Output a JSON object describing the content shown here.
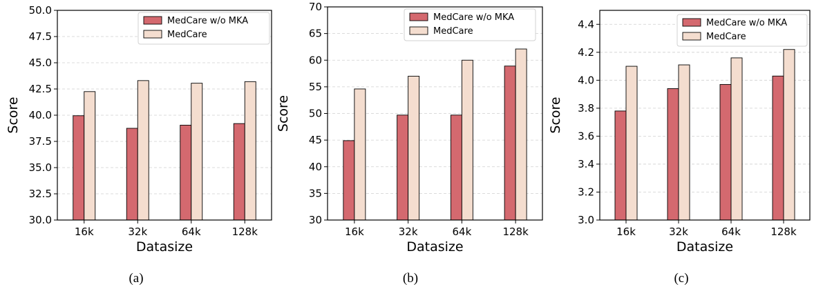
{
  "chart_data": [
    {
      "type": "bar",
      "caption": "(a)",
      "categories": [
        "16k",
        "32k",
        "64k",
        "128k"
      ],
      "series": [
        {
          "name": "MedCare w/o MKA",
          "color": "#d4696f",
          "values": [
            39.95,
            38.75,
            39.05,
            39.2
          ]
        },
        {
          "name": "MedCare",
          "color": "#f4ddcf",
          "values": [
            42.25,
            43.3,
            43.05,
            43.2
          ]
        }
      ],
      "xlabel": "Datasize",
      "ylabel": "Score",
      "ylim": [
        30.0,
        50.0
      ],
      "yticks": [
        "30.0",
        "32.5",
        "35.0",
        "37.5",
        "40.0",
        "42.5",
        "45.0",
        "47.5",
        "50.0"
      ],
      "grid": true,
      "legend": "top-right"
    },
    {
      "type": "bar",
      "caption": "(b)",
      "categories": [
        "16k",
        "32k",
        "64k",
        "128k"
      ],
      "series": [
        {
          "name": "MedCare w/o MKA",
          "color": "#d4696f",
          "values": [
            44.9,
            49.7,
            49.7,
            58.9
          ]
        },
        {
          "name": "MedCare",
          "color": "#f4ddcf",
          "values": [
            54.6,
            57.0,
            60.0,
            62.1
          ]
        }
      ],
      "xlabel": "Datasize",
      "ylabel": "Score",
      "ylim": [
        30,
        70
      ],
      "yticks": [
        "30",
        "35",
        "40",
        "45",
        "50",
        "55",
        "60",
        "65",
        "70"
      ],
      "grid": true,
      "legend": "top-left"
    },
    {
      "type": "bar",
      "caption": "(c)",
      "categories": [
        "16k",
        "32k",
        "64k",
        "128k"
      ],
      "series": [
        {
          "name": "MedCare w/o MKA",
          "color": "#d4696f",
          "values": [
            3.78,
            3.94,
            3.97,
            4.03
          ]
        },
        {
          "name": "MedCare",
          "color": "#f4ddcf",
          "values": [
            4.1,
            4.11,
            4.16,
            4.22
          ]
        }
      ],
      "xlabel": "Datasize",
      "ylabel": "Score",
      "ylim": [
        3.0,
        4.5
      ],
      "yticks": [
        "3.0",
        "3.2",
        "3.4",
        "3.6",
        "3.8",
        "4.0",
        "4.2",
        "4.4"
      ],
      "grid": true,
      "legend": "top-right"
    }
  ]
}
